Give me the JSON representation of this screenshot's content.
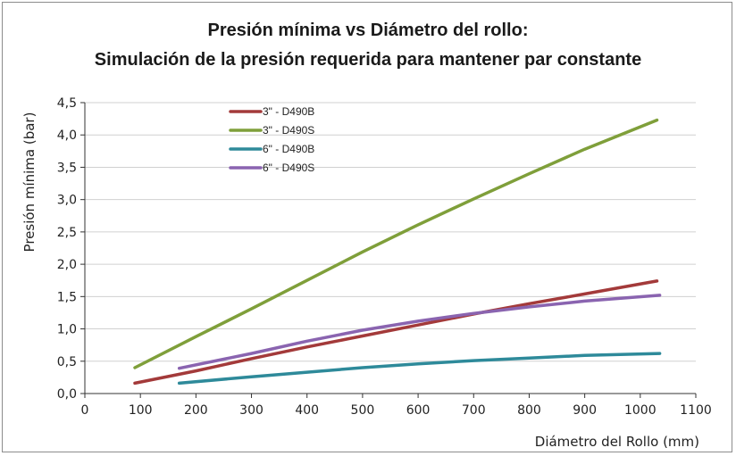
{
  "chart_data": {
    "type": "line",
    "title_line1": "Presión mínima vs Diámetro del rollo:",
    "title_line2": "Simulación de la presión requerida para mantener par constante",
    "xlabel": "Diámetro del Rollo (mm)",
    "ylabel": "Presión mínima (bar)",
    "xlim": [
      0,
      1100
    ],
    "ylim": [
      0,
      4.5
    ],
    "xticks": [
      "0",
      "100",
      "200",
      "300",
      "400",
      "500",
      "600",
      "700",
      "800",
      "900",
      "1000",
      "1100"
    ],
    "yticks": [
      "0,0",
      "0,5",
      "1,0",
      "1,5",
      "2,0",
      "2,5",
      "3,0",
      "3,5",
      "4,0",
      "4,5"
    ],
    "grid": "horizontal",
    "legend_position": "top-left",
    "series": [
      {
        "name": "3\" - D490B",
        "color": "#a33a3a",
        "x": [
          90,
          200,
          300,
          400,
          500,
          600,
          700,
          800,
          900,
          1030
        ],
        "y": [
          0.16,
          0.35,
          0.54,
          0.72,
          0.89,
          1.06,
          1.23,
          1.39,
          1.54,
          1.74
        ]
      },
      {
        "name": "3\" - D490S",
        "color": "#7f9f3a",
        "x": [
          90,
          200,
          300,
          400,
          500,
          600,
          700,
          800,
          900,
          1030
        ],
        "y": [
          0.4,
          0.88,
          1.31,
          1.75,
          2.19,
          2.61,
          3.01,
          3.4,
          3.78,
          4.23
        ]
      },
      {
        "name": "6\" - D490B",
        "color": "#2e8a9a",
        "x": [
          170,
          300,
          400,
          500,
          600,
          700,
          800,
          900,
          1035
        ],
        "y": [
          0.16,
          0.26,
          0.33,
          0.4,
          0.46,
          0.51,
          0.55,
          0.59,
          0.62
        ]
      },
      {
        "name": "6\" - D490S",
        "color": "#8a64b0",
        "x": [
          170,
          300,
          400,
          500,
          600,
          700,
          800,
          900,
          1035
        ],
        "y": [
          0.39,
          0.62,
          0.81,
          0.98,
          1.12,
          1.24,
          1.34,
          1.43,
          1.52
        ]
      }
    ]
  }
}
